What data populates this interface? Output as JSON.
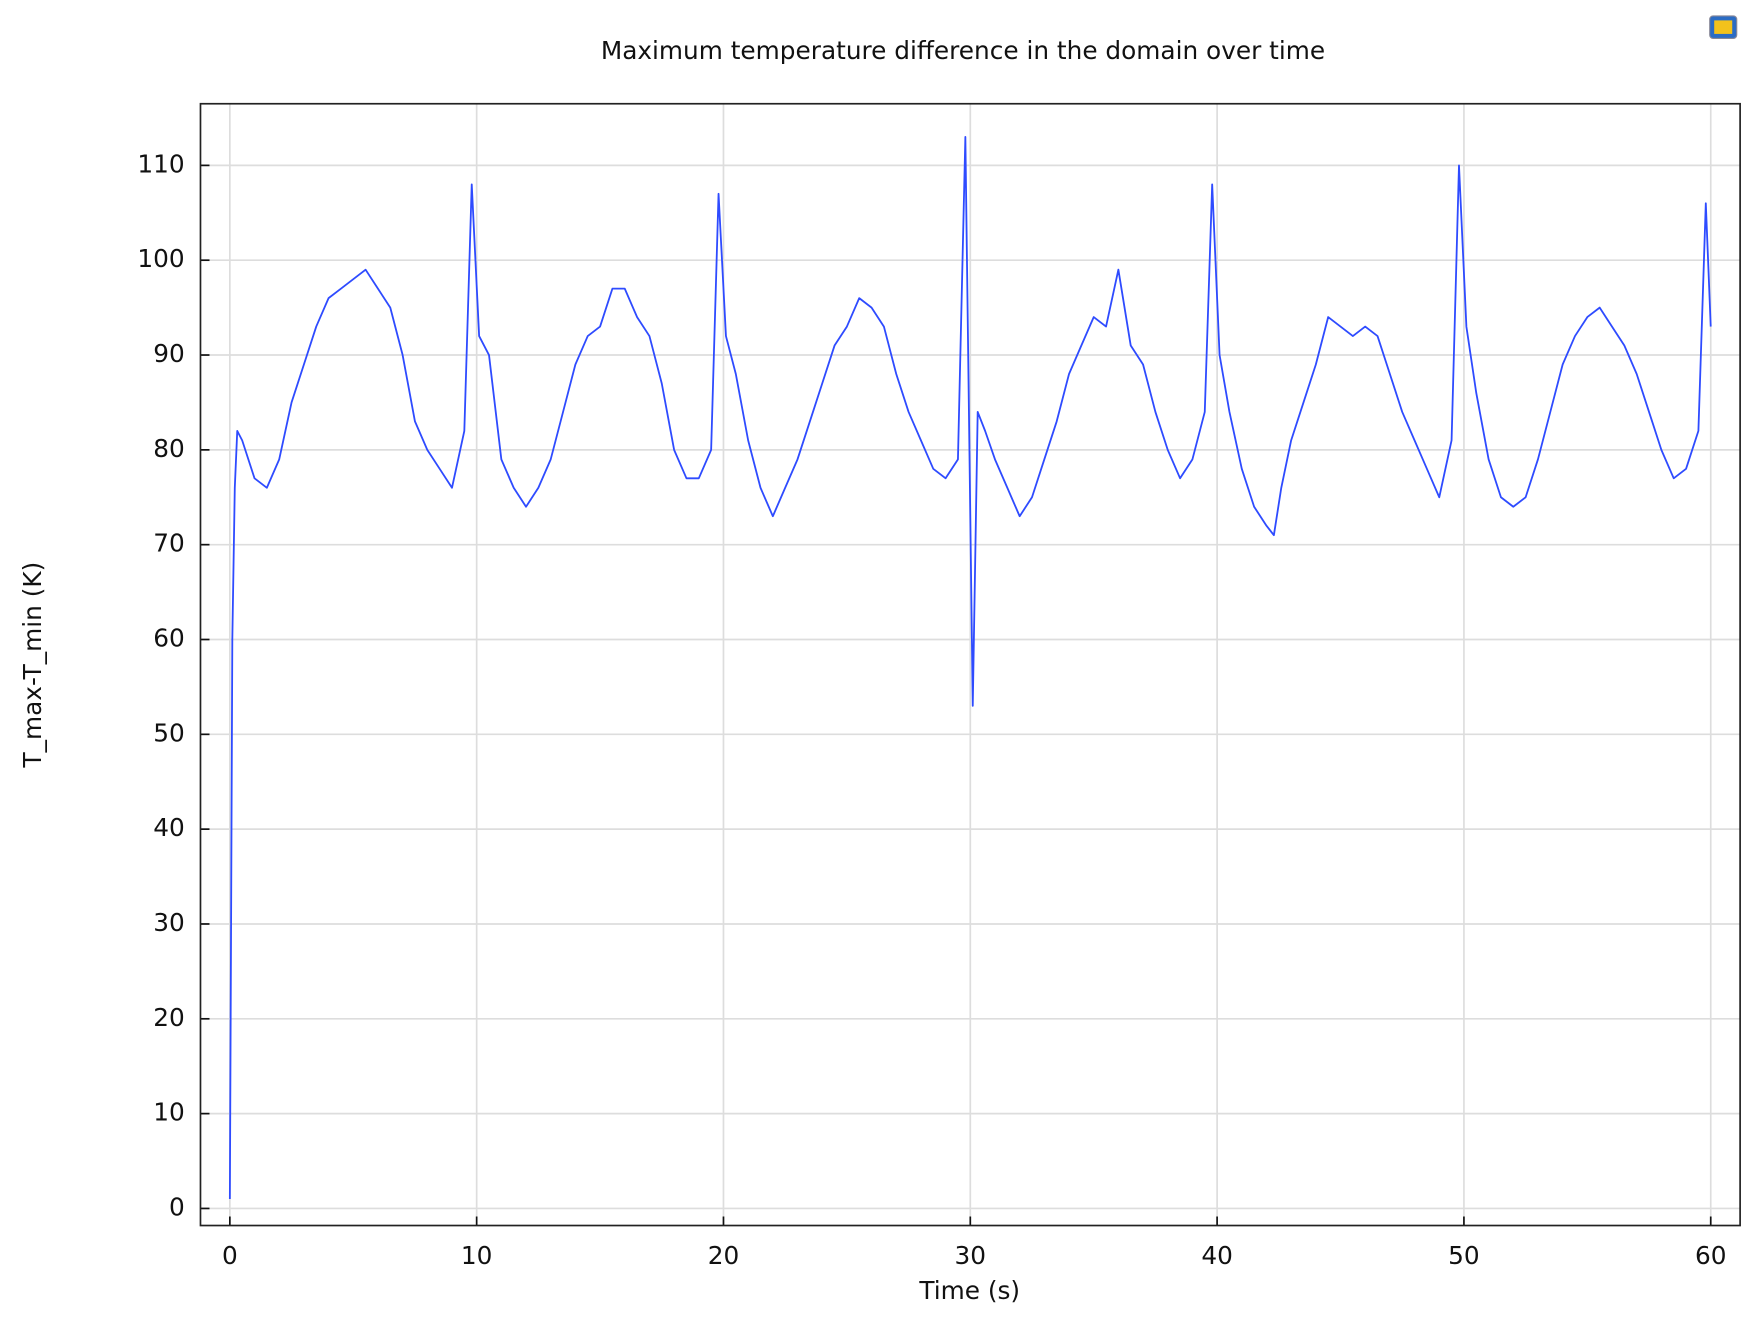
{
  "chart_data": {
    "type": "line",
    "title": "Maximum temperature difference in the domain over time",
    "x_label": "Time (s)",
    "y_label": "T_max-T_min (K)",
    "xlim": [
      -1.19,
      61.19
    ],
    "ylim": [
      -1.8,
      116.5
    ],
    "xticks": [
      0,
      10,
      20,
      30,
      40,
      50,
      60
    ],
    "yticks": [
      0,
      10,
      20,
      30,
      40,
      50,
      60,
      70,
      80,
      90,
      100,
      110
    ],
    "grid": true,
    "x": [
      0,
      0.05,
      0.1,
      0.2,
      0.3,
      0.5,
      1,
      1.5,
      2,
      2.5,
      3,
      3.5,
      4,
      4.5,
      5,
      5.5,
      6,
      6.5,
      7,
      7.5,
      8,
      8.5,
      9,
      9.5,
      9.8,
      10.1,
      10.5,
      11,
      11.5,
      12,
      12.5,
      13,
      13.5,
      14,
      14.5,
      15,
      15.5,
      16,
      16.5,
      17,
      17.5,
      18,
      18.5,
      19,
      19.5,
      19.8,
      20.1,
      20.5,
      21,
      21.5,
      22,
      22.5,
      23,
      23.5,
      24,
      24.5,
      25,
      25.5,
      26,
      26.5,
      27,
      27.5,
      28,
      28.5,
      29,
      29.5,
      29.8,
      30.1,
      30.3,
      30.6,
      31,
      31.5,
      32,
      32.5,
      33,
      33.5,
      34,
      34.5,
      35,
      35.5,
      36,
      36.5,
      37,
      37.5,
      38,
      38.5,
      39,
      39.5,
      39.8,
      40.1,
      40.5,
      41,
      41.5,
      42,
      42.3,
      42.6,
      43,
      43.5,
      44,
      44.5,
      45,
      45.5,
      46,
      46.5,
      47,
      47.5,
      48,
      48.5,
      49,
      49.5,
      49.8,
      50.1,
      50.5,
      51,
      51.5,
      52,
      52.5,
      53,
      53.5,
      54,
      54.5,
      55,
      55.5,
      56,
      56.5,
      57,
      57.5,
      58,
      58.5,
      59,
      59.5,
      59.8,
      60
    ],
    "series": [
      {
        "color": "#2e4bff",
        "values": [
          1,
          30,
          60,
          76,
          82,
          81,
          77,
          76,
          79,
          85,
          89,
          93,
          96,
          97,
          98,
          99,
          97,
          95,
          90,
          83,
          80,
          78,
          76,
          82,
          108,
          92,
          90,
          79,
          76,
          74,
          76,
          79,
          84,
          89,
          92,
          93,
          97,
          97,
          94,
          92,
          87,
          80,
          77,
          77,
          80,
          107,
          92,
          88,
          81,
          76,
          73,
          76,
          79,
          83,
          87,
          91,
          93,
          96,
          95,
          93,
          88,
          84,
          81,
          78,
          77,
          79,
          113,
          53,
          84,
          82,
          79,
          76,
          73,
          75,
          79,
          83,
          88,
          91,
          94,
          93,
          99,
          91,
          89,
          84,
          80,
          77,
          79,
          84,
          108,
          90,
          84,
          78,
          74,
          72,
          71,
          76,
          81,
          85,
          89,
          94,
          93,
          92,
          93,
          92,
          88,
          84,
          81,
          78,
          75,
          81,
          110,
          93,
          86,
          79,
          75,
          74,
          75,
          79,
          84,
          89,
          92,
          94,
          95,
          93,
          91,
          88,
          84,
          80,
          77,
          78,
          82,
          106,
          93
        ]
      }
    ]
  }
}
